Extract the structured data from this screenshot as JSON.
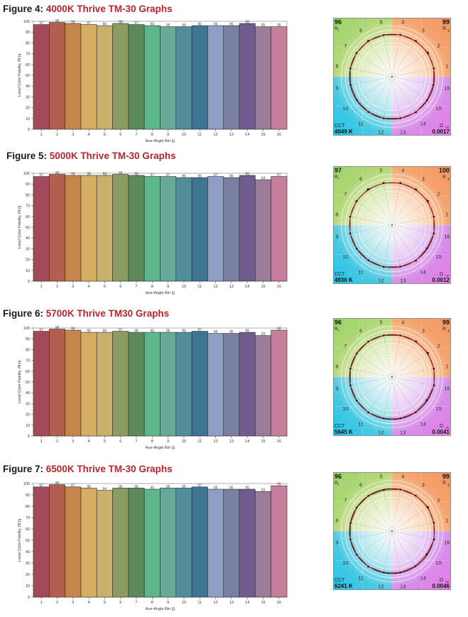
{
  "figures": [
    {
      "title_prefix": "Figure 4:",
      "title_name": "4000K Thrive TM-30 Graphs",
      "chart_data": {
        "type": "bar",
        "ylabel": "Local Color Fidelity, Rf,hj",
        "xlabel": "Hue-Angle Bin (j)",
        "ylim": [
          0,
          100
        ],
        "yticks": [
          0,
          10,
          20,
          30,
          40,
          50,
          60,
          70,
          80,
          90,
          100
        ],
        "categories": [
          "1",
          "2",
          "3",
          "4",
          "5",
          "6",
          "7",
          "8",
          "9",
          "10",
          "11",
          "12",
          "13",
          "14",
          "15",
          "16"
        ],
        "values": [
          97,
          99,
          98,
          97,
          96,
          98,
          97,
          96,
          95,
          95,
          96,
          96,
          96,
          98,
          95,
          95
        ]
      },
      "vector": {
        "rf": "96",
        "rf_sub": "f",
        "rg": "99",
        "rg_sub": "g",
        "cct_label": "CCT",
        "cct": "4049 K",
        "duv_label": "D",
        "duv_sub": "uv",
        "duv": "0.0017"
      }
    },
    {
      "title_prefix": "Figure 5:",
      "title_name": "5000K Thrive TM-30 Graphs",
      "chart_data": {
        "type": "bar",
        "ylabel": "Local Color Fidelity, Rf,hj",
        "xlabel": "Hue-Angle Bin (j)",
        "ylim": [
          0,
          100
        ],
        "yticks": [
          0,
          10,
          20,
          30,
          40,
          50,
          60,
          70,
          80,
          90,
          100
        ],
        "categories": [
          "1",
          "2",
          "3",
          "4",
          "5",
          "6",
          "7",
          "8",
          "9",
          "10",
          "11",
          "12",
          "13",
          "14",
          "15",
          "16"
        ],
        "values": [
          97,
          99,
          98,
          98,
          98,
          99,
          98,
          97,
          97,
          96,
          96,
          97,
          96,
          98,
          94,
          97
        ]
      },
      "vector": {
        "rf": "97",
        "rf_sub": "f",
        "rg": "100",
        "rg_sub": "g",
        "cct_label": "CCT",
        "cct": "4936 K",
        "duv_label": "D",
        "duv_sub": "uv",
        "duv": "0.0012"
      }
    },
    {
      "title_prefix": "Figure 6:",
      "title_name": "5700K Thrive TM30 Graphs",
      "chart_data": {
        "type": "bar",
        "ylabel": "Local Color Fidelity, Rf,hj",
        "xlabel": "Hue-Angle Bin (j)",
        "ylim": [
          0,
          100
        ],
        "yticks": [
          0,
          10,
          20,
          30,
          40,
          50,
          60,
          70,
          80,
          90,
          100
        ],
        "categories": [
          "1",
          "2",
          "3",
          "4",
          "5",
          "6",
          "7",
          "8",
          "9",
          "10",
          "11",
          "12",
          "13",
          "14",
          "15",
          "16"
        ],
        "values": [
          97,
          99,
          98,
          96,
          96,
          97,
          96,
          96,
          96,
          96,
          97,
          95,
          95,
          96,
          93,
          98
        ]
      },
      "vector": {
        "rf": "96",
        "rf_sub": "f",
        "rg": "99",
        "rg_sub": "g",
        "cct_label": "CCT",
        "cct": "5645 K",
        "duv_label": "D",
        "duv_sub": "uv",
        "duv": "0.0041"
      }
    },
    {
      "title_prefix": "Figure 7:",
      "title_name": "6500K Thrive TM-30 Graphs",
      "chart_data": {
        "type": "bar",
        "ylabel": "Local Color Fidelity, Rf,hj",
        "xlabel": "Hue-Angle Bin (j)",
        "ylim": [
          0,
          100
        ],
        "yticks": [
          0,
          10,
          20,
          30,
          40,
          50,
          60,
          70,
          80,
          90,
          100
        ],
        "categories": [
          "1",
          "2",
          "3",
          "4",
          "5",
          "6",
          "7",
          "8",
          "9",
          "10",
          "11",
          "12",
          "13",
          "14",
          "15",
          "16"
        ],
        "values": [
          97,
          99,
          97,
          96,
          94,
          96,
          96,
          95,
          96,
          96,
          97,
          95,
          95,
          95,
          93,
          98
        ]
      },
      "vector": {
        "rf": "96",
        "rf_sub": "f",
        "rg": "99",
        "rg_sub": "g",
        "cct_label": "CCT",
        "cct": "6241 K",
        "duv_label": "D",
        "duv_sub": "uv",
        "duv": "0.0046"
      }
    }
  ],
  "bar_colors": [
    "#a34a5a",
    "#b2604e",
    "#c4854d",
    "#d4ae62",
    "#c9b06b",
    "#8a9c5f",
    "#5d8a5b",
    "#5cb78c",
    "#6aa89b",
    "#4f8e9a",
    "#3d7493",
    "#8f9ec6",
    "#7b7fa4",
    "#6e5c8e",
    "#9b7d9a",
    "#c77e9c"
  ],
  "hue_bin_labels": [
    "1",
    "2",
    "3",
    "4",
    "5",
    "6",
    "7",
    "8",
    "9",
    "10",
    "11",
    "12",
    "13",
    "14",
    "15",
    "16"
  ]
}
